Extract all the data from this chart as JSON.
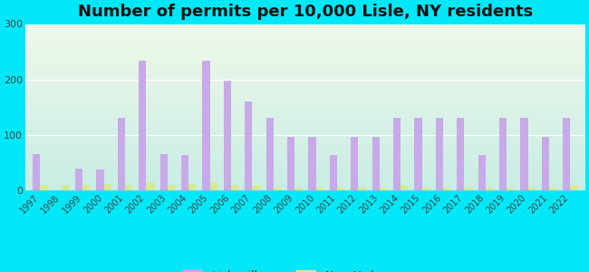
{
  "title": "Number of permits per 10,000 Lisle, NY residents",
  "years": [
    1997,
    1998,
    1999,
    2000,
    2001,
    2002,
    2003,
    2004,
    2005,
    2006,
    2007,
    2008,
    2009,
    2010,
    2011,
    2012,
    2013,
    2014,
    2015,
    2016,
    2017,
    2018,
    2019,
    2020,
    2021,
    2022
  ],
  "lisle_values": [
    65,
    0,
    40,
    38,
    130,
    233,
    65,
    63,
    233,
    198,
    160,
    130,
    97,
    97,
    63,
    97,
    97,
    130,
    130,
    130,
    130,
    63,
    130,
    130,
    97,
    130
  ],
  "ny_values": [
    10,
    10,
    10,
    12,
    10,
    15,
    10,
    12,
    15,
    10,
    8,
    5,
    5,
    5,
    5,
    5,
    5,
    8,
    5,
    5,
    5,
    5,
    5,
    5,
    5,
    8
  ],
  "lisle_color": "#c8aae8",
  "ny_color": "#d8e890",
  "ylim": [
    0,
    300
  ],
  "yticks": [
    0,
    100,
    200,
    300
  ],
  "bg_outer": "#00e8f8",
  "bg_plot_topleft": "#f0f8e8",
  "bg_plot_bottomright": "#c0ece0",
  "title_fontsize": 13,
  "tick_fontsize": 7,
  "legend_fontsize": 9,
  "bar_width": 0.35
}
